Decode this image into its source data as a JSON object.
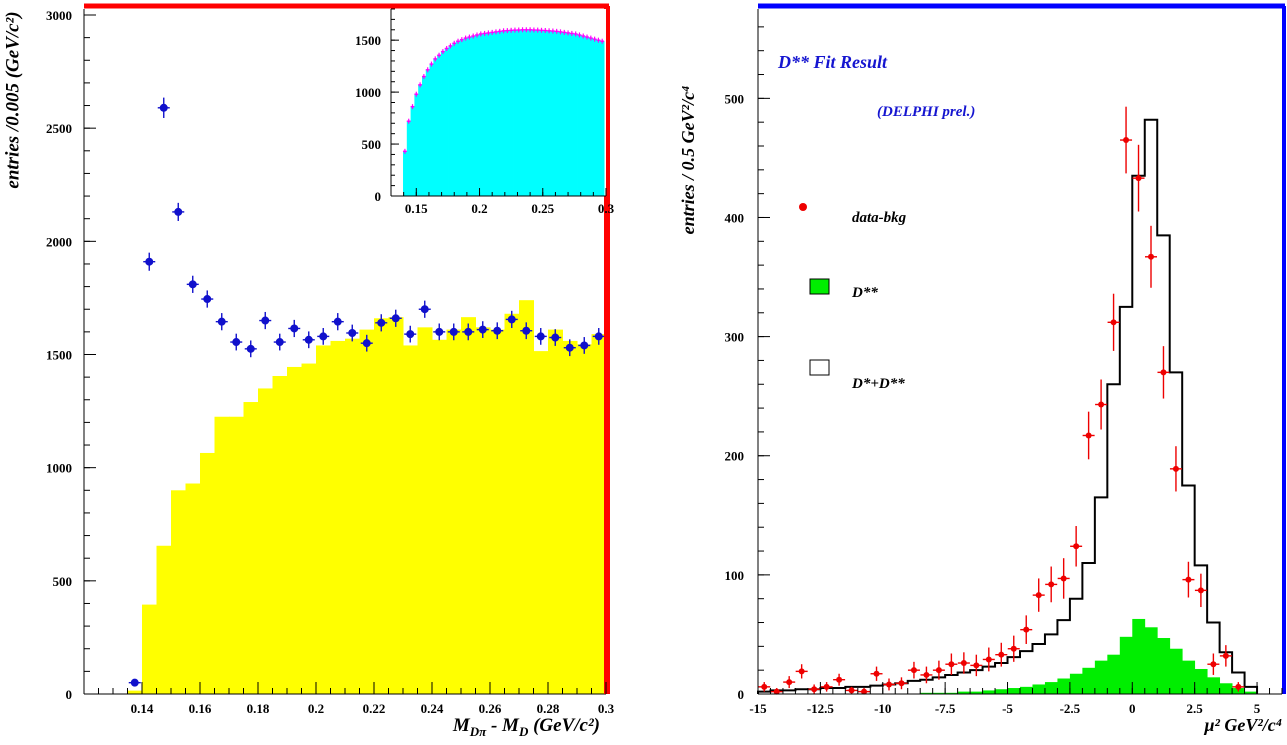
{
  "chart_data": [
    {
      "type": "bar",
      "panel": "left-main",
      "ylabel": "entries /0.005 (GeV/c²)",
      "xlabel_main": "M",
      "xlabel_sub": "Dπ",
      "xlabel_rest1": " - M",
      "xlabel_sub2": "D",
      "xlabel_rest2": " (GeV/c²)",
      "xlim": [
        0.12,
        0.3
      ],
      "ylim": [
        0,
        3000
      ],
      "xticks": [
        0.14,
        0.16,
        0.18,
        0.2,
        0.22,
        0.24,
        0.26,
        0.28,
        0.3
      ],
      "xtick_labels": [
        "0.14",
        "0.16",
        "0.18",
        "0.2",
        "0.22",
        "0.24",
        "0.26",
        "0.28",
        "0.3"
      ],
      "yticks": [
        0,
        500,
        1000,
        1500,
        2000,
        2500,
        3000
      ],
      "ytick_labels": [
        "0",
        "500",
        "1000",
        "1500",
        "2000",
        "2500",
        "3000"
      ],
      "colors": {
        "histogram": "#ffff00",
        "points": "#1010cc",
        "frame_highlight": "#ff0000"
      },
      "histogram": {
        "name": "background",
        "bin_width": 0.005,
        "bin_starts": [
          0.135,
          0.14,
          0.145,
          0.15,
          0.155,
          0.16,
          0.165,
          0.17,
          0.175,
          0.18,
          0.185,
          0.19,
          0.195,
          0.2,
          0.205,
          0.21,
          0.215,
          0.22,
          0.225,
          0.23,
          0.235,
          0.24,
          0.245,
          0.25,
          0.255,
          0.26,
          0.265,
          0.27,
          0.275,
          0.28,
          0.285,
          0.29,
          0.295
        ],
        "values": [
          15,
          395,
          655,
          900,
          930,
          1065,
          1225,
          1225,
          1290,
          1350,
          1405,
          1445,
          1460,
          1540,
          1560,
          1570,
          1610,
          1660,
          1665,
          1540,
          1620,
          1565,
          1610,
          1665,
          1620,
          1610,
          1680,
          1740,
          1515,
          1610,
          1560,
          1545,
          1590
        ]
      },
      "points": {
        "name": "data",
        "x": [
          0.1375,
          0.1425,
          0.1475,
          0.1525,
          0.1575,
          0.1625,
          0.1675,
          0.1725,
          0.1775,
          0.1825,
          0.1875,
          0.1925,
          0.1975,
          0.2025,
          0.2075,
          0.2125,
          0.2175,
          0.2225,
          0.2275,
          0.2325,
          0.2375,
          0.2425,
          0.2475,
          0.2525,
          0.2575,
          0.2625,
          0.2675,
          0.2725,
          0.2775,
          0.2825,
          0.2875,
          0.2925,
          0.2975
        ],
        "y": [
          50,
          1910,
          2590,
          2130,
          1810,
          1745,
          1645,
          1555,
          1525,
          1650,
          1555,
          1615,
          1565,
          1580,
          1645,
          1595,
          1550,
          1640,
          1660,
          1590,
          1700,
          1600,
          1600,
          1600,
          1610,
          1605,
          1655,
          1605,
          1580,
          1575,
          1530,
          1540,
          1580
        ],
        "err": [
          8,
          40,
          45,
          40,
          38,
          38,
          38,
          37,
          37,
          38,
          37,
          38,
          37,
          37,
          38,
          37,
          37,
          38,
          38,
          37,
          38,
          37,
          37,
          37,
          37,
          37,
          38,
          37,
          37,
          37,
          37,
          37,
          37
        ]
      }
    },
    {
      "type": "bar",
      "panel": "left-inset",
      "xlim": [
        0.13,
        0.3
      ],
      "ylim": [
        0,
        1800
      ],
      "xticks": [
        0.15,
        0.2,
        0.25,
        0.3
      ],
      "xtick_labels": [
        "0.15",
        "0.2",
        "0.25",
        "0.3"
      ],
      "yticks": [
        0,
        500,
        1000,
        1500
      ],
      "ytick_labels": [
        "0",
        "500",
        "1000",
        "1500"
      ],
      "colors": {
        "histogram": "#00ffff",
        "points": "#ff00ff"
      },
      "bin_starts": [
        0.1395,
        0.1425,
        0.1455,
        0.1485,
        0.1515,
        0.1545,
        0.1575,
        0.1605,
        0.1635,
        0.1665,
        0.1695,
        0.1725,
        0.1755,
        0.1785,
        0.1815,
        0.1845,
        0.1875,
        0.1905,
        0.1935,
        0.1965,
        0.1995,
        0.2025,
        0.2055,
        0.2085,
        0.2115,
        0.2145,
        0.2175,
        0.2205,
        0.2235,
        0.2265,
        0.2295,
        0.2325,
        0.2355,
        0.2385,
        0.2415,
        0.2445,
        0.2475,
        0.2505,
        0.2535,
        0.2565,
        0.2595,
        0.2625,
        0.2655,
        0.2685,
        0.2715,
        0.2745,
        0.2775,
        0.2805,
        0.2835,
        0.2865,
        0.2895,
        0.2925,
        0.2955
      ],
      "bin_width": 0.003,
      "values": [
        430,
        720,
        860,
        980,
        1070,
        1150,
        1215,
        1270,
        1320,
        1355,
        1390,
        1420,
        1445,
        1470,
        1490,
        1505,
        1520,
        1530,
        1540,
        1550,
        1560,
        1565,
        1570,
        1575,
        1580,
        1585,
        1590,
        1592,
        1595,
        1597,
        1598,
        1600,
        1600,
        1600,
        1598,
        1597,
        1595,
        1593,
        1590,
        1588,
        1585,
        1580,
        1575,
        1570,
        1565,
        1560,
        1550,
        1540,
        1530,
        1520,
        1510,
        1500,
        1490
      ]
    },
    {
      "type": "bar",
      "panel": "right",
      "title": "D** Fit Result",
      "subtitle": "(DELPHI prel.)",
      "ylabel": "entries / 0.5 GeV²/c⁴",
      "xlabel": "μ² GeV²/c⁴",
      "xlim": [
        -15,
        6
      ],
      "ylim": [
        0,
        575
      ],
      "xticks": [
        -15,
        -12.5,
        -10,
        -7.5,
        -5,
        -2.5,
        0,
        2.5,
        5
      ],
      "xtick_labels": [
        "-15",
        "-12.5",
        "-10",
        "-7.5",
        "-5",
        "-2.5",
        "0",
        "2.5",
        "5"
      ],
      "yticks": [
        0,
        100,
        200,
        300,
        400,
        500
      ],
      "ytick_labels": [
        "0",
        "100",
        "200",
        "300",
        "400",
        "500"
      ],
      "colors": {
        "dstarstar": "#00ee00",
        "total": "#000000",
        "data": "#ee0000",
        "frame_highlight": "#0000ff"
      },
      "legend": [
        {
          "marker": "dot",
          "text": "data-bkg"
        },
        {
          "marker": "green-box",
          "text": "D**"
        },
        {
          "marker": "open-box",
          "text": "D*+D**"
        }
      ],
      "bin_width": 0.5,
      "bin_starts": [
        -15,
        -14.5,
        -14,
        -13.5,
        -13,
        -12.5,
        -12,
        -11.5,
        -11,
        -10.5,
        -10,
        -9.5,
        -9,
        -8.5,
        -8,
        -7.5,
        -7,
        -6.5,
        -6,
        -5.5,
        -5,
        -4.5,
        -4,
        -3.5,
        -3,
        -2.5,
        -2,
        -1.5,
        -1,
        -0.5,
        0,
        0.5,
        1,
        1.5,
        2,
        2.5,
        3,
        3.5,
        4,
        4.5
      ],
      "total": [
        2,
        3,
        3,
        4,
        4,
        5,
        5,
        6,
        6,
        7,
        8,
        9,
        11,
        12,
        14,
        16,
        18,
        20,
        23,
        26,
        31,
        36,
        42,
        50,
        62,
        80,
        110,
        165,
        260,
        325,
        435,
        482,
        385,
        270,
        175,
        108,
        60,
        35,
        18,
        6
      ],
      "dstarstar": [
        0,
        0,
        0,
        0,
        0,
        0,
        0,
        0,
        0,
        0,
        0,
        0,
        0,
        1,
        1,
        1,
        2,
        2,
        3,
        4,
        5,
        6,
        8,
        10,
        13,
        17,
        22,
        28,
        33,
        48,
        63,
        56,
        47,
        38,
        28,
        21,
        14,
        9,
        5,
        2
      ],
      "data": {
        "x": [
          -14.75,
          -14.25,
          -13.75,
          -13.25,
          -12.75,
          -12.25,
          -11.75,
          -11.25,
          -10.75,
          -10.25,
          -9.75,
          -9.25,
          -8.75,
          -8.25,
          -7.75,
          -7.25,
          -6.75,
          -6.25,
          -5.75,
          -5.25,
          -4.75,
          -4.25,
          -3.75,
          -3.25,
          -2.75,
          -2.25,
          -1.75,
          -1.25,
          -0.75,
          -0.25,
          0.25,
          0.75,
          1.25,
          1.75,
          2.25,
          2.75,
          3.25,
          3.75,
          4.25
        ],
        "y": [
          6,
          2,
          10,
          19,
          4,
          6,
          12,
          3,
          2,
          17,
          8,
          9,
          20,
          16,
          20,
          25,
          26,
          24,
          29,
          33,
          38,
          54,
          83,
          92,
          97,
          124,
          217,
          243,
          312,
          465,
          433,
          367,
          270,
          189,
          96,
          87,
          25,
          32,
          6
        ],
        "err": [
          4,
          3,
          5,
          6,
          4,
          4,
          5,
          3,
          3,
          6,
          5,
          5,
          7,
          7,
          8,
          9,
          9,
          9,
          10,
          10,
          11,
          12,
          14,
          15,
          17,
          17,
          20,
          21,
          24,
          28,
          28,
          26,
          22,
          19,
          15,
          14,
          9,
          9,
          4
        ]
      }
    }
  ]
}
